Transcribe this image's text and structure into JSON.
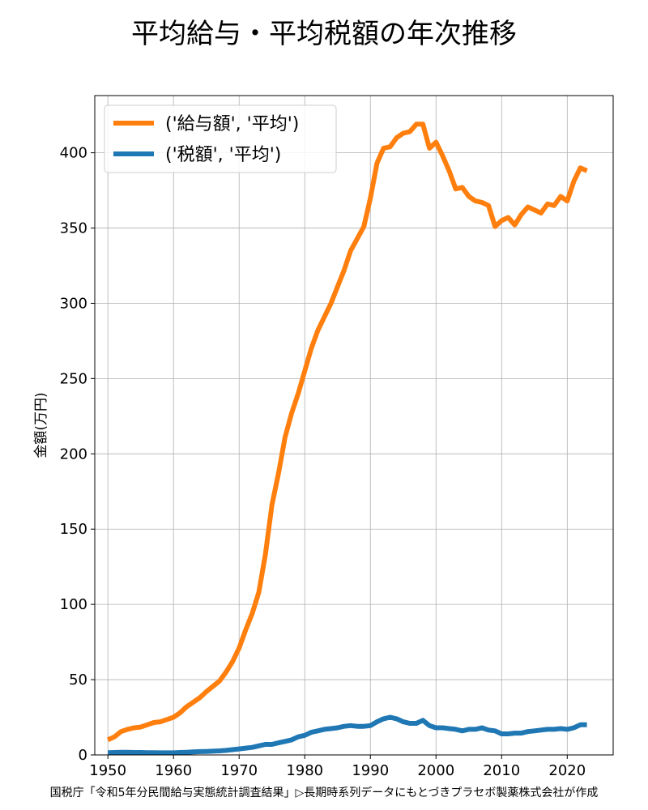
{
  "title": "平均給与・平均税額の年次推移",
  "footer": "国税庁「令和5年分民間給与実態統計調査結果」▷長期時系列データにもとづきプラセボ製薬株式会社が作成",
  "chart_data": {
    "type": "line",
    "title": "平均給与・平均税額の年次推移",
    "xlabel": "",
    "ylabel": "金額(万円)",
    "xlim": [
      1948,
      2027
    ],
    "ylim": [
      0,
      438
    ],
    "xticks": [
      1950,
      1960,
      1970,
      1980,
      1990,
      2000,
      2010,
      2020
    ],
    "yticks": [
      0,
      50,
      100,
      150,
      200,
      250,
      300,
      350,
      400
    ],
    "grid": true,
    "legend_position": "top-left",
    "x": [
      1950,
      1951,
      1952,
      1953,
      1954,
      1955,
      1956,
      1957,
      1958,
      1959,
      1960,
      1961,
      1962,
      1963,
      1964,
      1965,
      1966,
      1967,
      1968,
      1969,
      1970,
      1971,
      1972,
      1973,
      1974,
      1975,
      1976,
      1977,
      1978,
      1979,
      1980,
      1981,
      1982,
      1983,
      1984,
      1985,
      1986,
      1987,
      1988,
      1989,
      1990,
      1991,
      1992,
      1993,
      1994,
      1995,
      1996,
      1997,
      1998,
      1999,
      2000,
      2001,
      2002,
      2003,
      2004,
      2005,
      2006,
      2007,
      2008,
      2009,
      2010,
      2011,
      2012,
      2013,
      2014,
      2015,
      2016,
      2017,
      2018,
      2019,
      2020,
      2021,
      2022,
      2023
    ],
    "series": [
      {
        "name": "('給与額', '平均')",
        "color": "#ff7f0e",
        "values": [
          10,
          12,
          15.5,
          17,
          18,
          18.5,
          20,
          21.5,
          22,
          23.5,
          25,
          28,
          32,
          35,
          38,
          42,
          45.5,
          49,
          55,
          62,
          71,
          83,
          94,
          108,
          133,
          166,
          187,
          211,
          227,
          240,
          255,
          270,
          282,
          291,
          300,
          311,
          322,
          335,
          343,
          351,
          370,
          393,
          403,
          404,
          410,
          413,
          414,
          419,
          419,
          403,
          407,
          398,
          388,
          376,
          377,
          371,
          368,
          367,
          365,
          351,
          355,
          357,
          352,
          359,
          364,
          362,
          360,
          366,
          365,
          371,
          368,
          381,
          390,
          388
        ]
      },
      {
        "name": "('税額', '平均')",
        "color": "#1f77b4",
        "values": [
          1.5,
          1.6,
          1.7,
          1.7,
          1.6,
          1.6,
          1.5,
          1.5,
          1.4,
          1.4,
          1.4,
          1.6,
          1.8,
          2,
          2.2,
          2.3,
          2.5,
          2.7,
          3,
          3.5,
          4,
          4.5,
          5,
          6,
          7,
          7,
          8,
          9,
          10,
          12,
          13,
          15,
          16,
          17,
          17.5,
          18,
          19,
          19.5,
          19,
          19,
          19.5,
          22,
          24,
          25,
          24,
          22,
          21,
          21,
          23,
          19.5,
          18,
          18,
          17.5,
          17,
          16,
          17,
          17,
          18,
          16.5,
          16,
          14,
          14,
          14.5,
          14.5,
          15.5,
          16,
          16.5,
          17,
          17,
          17.5,
          17,
          18,
          20,
          20
        ]
      }
    ]
  }
}
